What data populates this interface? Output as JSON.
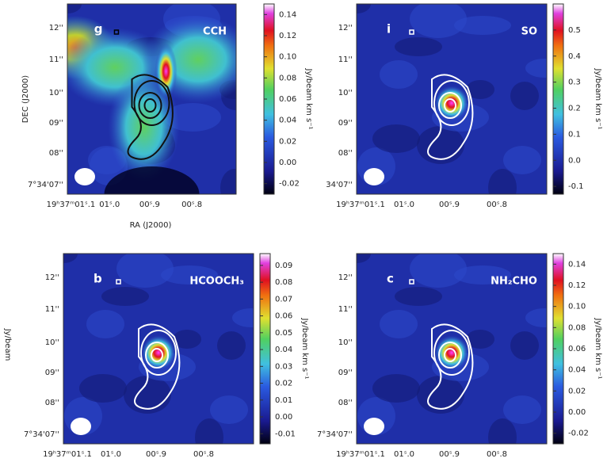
{
  "panels": [
    {
      "letter": "g",
      "molecule": "CCH",
      "colorbar_label": "Jy/beam km s⁻¹",
      "clim": [
        -0.03,
        0.15
      ],
      "cticks": [
        0.14,
        0.12,
        {
          "value": 0.1,
          "label": "0.10"
        },
        0.08,
        0.06,
        0.04,
        0.02,
        {
          "value": 0,
          "label": "0.00"
        },
        -0.02
      ],
      "yticks": [
        "12''",
        "11''",
        "10''",
        "09''",
        "08''",
        "7°34'07''"
      ],
      "xticks": [
        "19ʰ37ᵐ01ˢ.1",
        "01ˢ.0",
        "00ˢ.9",
        "00ˢ.8"
      ]
    },
    {
      "letter": "i",
      "molecule": "SO",
      "colorbar_label": "Jy/beam km s⁻¹",
      "clim": [
        -0.13,
        0.6
      ],
      "cticks": [
        0.5,
        0.4,
        0.3,
        0.2,
        0.1,
        {
          "value": 0,
          "label": "0.0"
        },
        -0.1
      ],
      "yticks": [
        "12''",
        "11''",
        "10''",
        "09''",
        "08''",
        "34'07''"
      ],
      "xticks": [
        "19ʰ37ᵐ01ˢ.1",
        "01ˢ.0",
        "00ˢ.9",
        "00ˢ.8"
      ]
    },
    {
      "letter": "b",
      "molecule": "HCOOCH₃",
      "colorbar_label": "Jy/beam km s⁻¹",
      "clim": [
        -0.016,
        0.097
      ],
      "cticks": [
        0.09,
        0.08,
        0.07,
        0.06,
        0.05,
        0.04,
        0.03,
        0.02,
        0.01,
        {
          "value": 0,
          "label": "0.00"
        },
        -0.01
      ],
      "yticks": [
        "12''",
        "11''",
        "10''",
        "09''",
        "08''",
        "7°34'07''"
      ],
      "xticks": [
        "19ʰ37ᵐ01ˢ.1",
        "01ˢ.0",
        "00ˢ.9",
        "00ˢ.8"
      ]
    },
    {
      "letter": "c",
      "molecule": "NH₂CHO",
      "colorbar_label": "Jy/beam km s⁻¹",
      "clim": [
        -0.03,
        0.15
      ],
      "cticks": [
        0.14,
        0.12,
        {
          "value": 0.1,
          "label": "0.10"
        },
        0.08,
        0.06,
        0.04,
        0.02,
        {
          "value": 0,
          "label": "0.00"
        },
        -0.02
      ],
      "yticks": [
        "12''",
        "11''",
        "10''",
        "09''",
        "08''",
        "7°34'07''"
      ],
      "xticks": [
        "19ʰ37ᵐ01ˢ.1",
        "01ˢ.0",
        "00ˢ.9",
        "00ˢ.8"
      ]
    }
  ],
  "x_label": "RA (J2000)",
  "y_label": "DEC (J2000)",
  "side_label": "Jy/beam"
}
